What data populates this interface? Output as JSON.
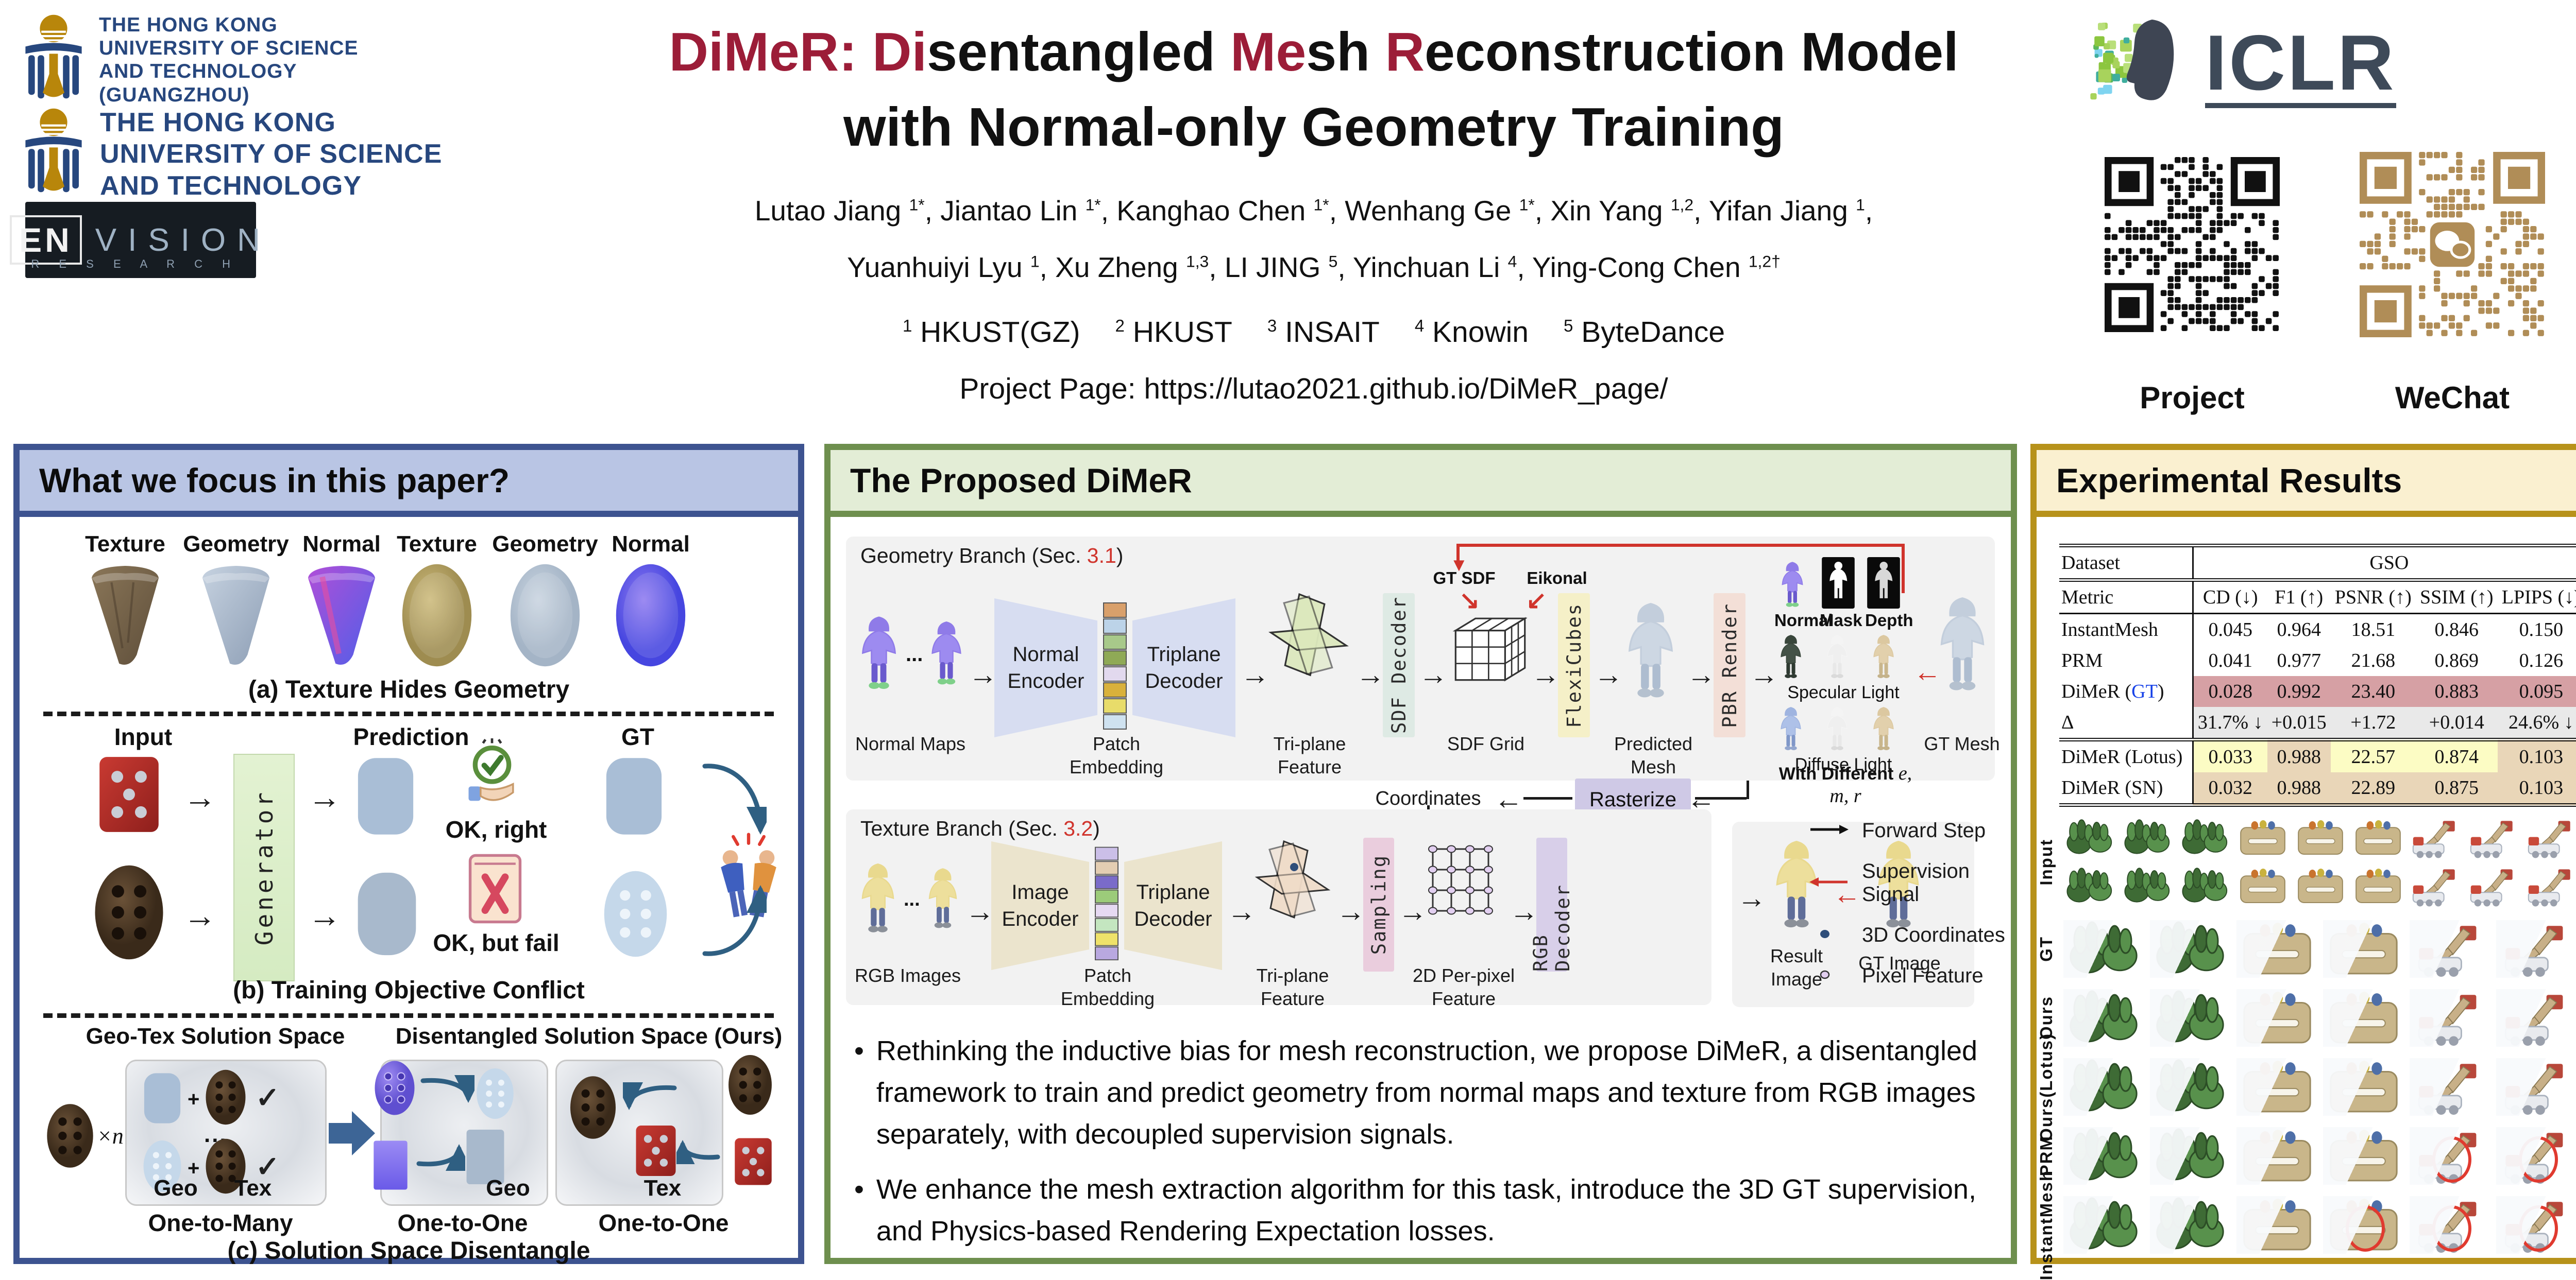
{
  "header": {
    "hkust_gz": {
      "lines": [
        "THE HONG KONG",
        "UNIVERSITY OF SCIENCE",
        "AND TECHNOLOGY",
        "(GUANGZHOU)"
      ]
    },
    "hkust": {
      "lines": [
        "THE HONG KONG",
        "UNIVERSITY OF SCIENCE",
        "AND TECHNOLOGY"
      ]
    },
    "envision": {
      "en": "EN",
      "vision": "VISION",
      "research": "R E S E A R C H"
    },
    "title": {
      "line1_parts": [
        {
          "text": "DiMeR",
          "accent": true
        },
        {
          "text": ": ",
          "accent": true
        },
        {
          "text": "Di",
          "accent": true
        },
        {
          "text": "sentangled ",
          "accent": false
        },
        {
          "text": "Me",
          "accent": true
        },
        {
          "text": "sh ",
          "accent": false
        },
        {
          "text": "R",
          "accent": true
        },
        {
          "text": "econstruction Model",
          "accent": false
        }
      ],
      "line2": "with Normal-only Geometry Training"
    },
    "authors_line1": [
      {
        "name": "Lutao Jiang",
        "sup": "1*"
      },
      {
        "name": "Jiantao Lin",
        "sup": "1*"
      },
      {
        "name": "Kanghao Chen",
        "sup": "1*"
      },
      {
        "name": "Wenhang Ge",
        "sup": "1*"
      },
      {
        "name": "Xin Yang",
        "sup": "1,2"
      },
      {
        "name": "Yifan Jiang",
        "sup": "1"
      }
    ],
    "authors_line1_suffix": ",",
    "authors_line2": [
      {
        "name": "Yuanhuiyi Lyu",
        "sup": "1"
      },
      {
        "name": "Xu Zheng",
        "sup": "1,3"
      },
      {
        "name": "LI JING",
        "sup": "5"
      },
      {
        "name": "Yinchuan Li",
        "sup": "4"
      },
      {
        "name": "Ying-Cong Chen",
        "sup": "1,2†"
      }
    ],
    "affiliations": [
      {
        "sup": "1",
        "name": "HKUST(GZ)"
      },
      {
        "sup": "2",
        "name": "HKUST"
      },
      {
        "sup": "3",
        "name": "INSAIT"
      },
      {
        "sup": "4",
        "name": "Knowin"
      },
      {
        "sup": "5",
        "name": "ByteDance"
      }
    ],
    "project_page": "Project Page: https://lutao2021.github.io/DiMeR_page/",
    "iclr_text": "ICLR",
    "qr_project_label": "Project",
    "qr_wechat_label": "WeChat"
  },
  "left_panel": {
    "title": "What we focus in this paper?",
    "section_a": {
      "labels": [
        "Texture",
        "Geometry",
        "Normal",
        "Texture",
        "Geometry",
        "Normal"
      ],
      "caption_tag": "(a)",
      "caption": " Texture Hides Geometry"
    },
    "section_b": {
      "headers": [
        "Input",
        "Prediction",
        "GT"
      ],
      "generator_label": "Generator",
      "ok_right": "OK, right",
      "ok_fail": "OK, but fail",
      "caption_tag": "(b)",
      "caption": " Training Objective Conflict"
    },
    "section_c": {
      "left_space_title": "Geo-Tex Solution Space",
      "right_space_title_pre": "Disentangled Solution Space (",
      "right_space_title_accent": "Ours",
      "right_space_title_post": ")",
      "multiplier": "×n",
      "ellipsis": "...",
      "geo_label": "Geo",
      "tex_label": "Tex",
      "captions": [
        "One-to-Many",
        "One-to-One",
        "One-to-One"
      ],
      "caption_tag": "(c)",
      "caption": " Solution Space Disentangle"
    }
  },
  "center_panel": {
    "title": "The Proposed DiMeR",
    "geometry_branch": {
      "heading_pre": "Geometry Branch (Sec. ",
      "heading_num": "3.1",
      "heading_post": ")",
      "nodes": {
        "normal_maps": "Normal Maps",
        "normal_encoder": "Normal Encoder",
        "patch_embedding": "Patch Embedding",
        "triplane_decoder": "Triplane Decoder",
        "triplane_feature": "Tri-plane Feature",
        "sdf_decoder": "SDF Decoder",
        "sdf_grid": "SDF Grid",
        "gt_sdf": "GT SDF",
        "eikonal": "Eikonal",
        "flexicubes": "FlexiCubes",
        "predicted_mesh": "Predicted Mesh",
        "pbr_render": "PBR Render",
        "normal": "Normal",
        "mask": "Mask",
        "depth": "Depth",
        "specular": "Specular Light",
        "diffuse": "Diffuse Light",
        "with_different": "With Different",
        "emr": "e, m, r",
        "gt_mesh": "GT Mesh"
      }
    },
    "texture_branch": {
      "heading_pre": "Texture Branch (Sec. ",
      "heading_num": "3.2",
      "heading_post": ")",
      "nodes": {
        "rgb_images": "RGB Images",
        "image_encoder": "Image Encoder",
        "patch_embedding": "Patch Embedding",
        "triplane_decoder": "Triplane Decoder",
        "triplane_feature": "Tri-plane Feature",
        "sampling": "Sampling",
        "per_pixel": "2D Per-pixel Feature",
        "rgb_decoder": "RGB Decoder",
        "result_image": "Result Image",
        "gt_image": "GT Image",
        "coordinates": "Coordinates",
        "rasterize": "Rasterize"
      }
    },
    "legend": [
      {
        "icon": "forward-arrow",
        "label": "Forward Step"
      },
      {
        "icon": "supervision-arrow",
        "label": "Supervision Signal"
      },
      {
        "icon": "coordinate-dot",
        "label": "3D Coordinates"
      },
      {
        "icon": "pixel-dot",
        "label": "Pixel Feature"
      }
    ],
    "bullets": [
      "Rethinking the inductive bias for mesh reconstruction, we propose DiMeR, a disentangled framework to train and predict geometry from normal maps and texture from RGB images separately, with decoupled supervision signals.",
      "We enhance the mesh extraction algorithm for this task, introduce the 3D GT supervision, and Physics-based Rendering Expectation losses."
    ]
  },
  "right_panel": {
    "title": "Experimental Results",
    "table": {
      "dataset_label": "Dataset",
      "dataset_value": "GSO",
      "metric_label": "Metric",
      "columns": [
        "CD (↓)",
        "F1 (↑)",
        "PSNR (↑)",
        "SSIM (↑)",
        "LPIPS (↓)"
      ],
      "rows": [
        {
          "name": "InstantMesh",
          "values": [
            "0.045",
            "0.964",
            "18.51",
            "0.846",
            "0.150"
          ],
          "cell_bg": [
            "",
            "",
            "",
            "",
            ""
          ]
        },
        {
          "name": "PRM",
          "values": [
            "0.041",
            "0.977",
            "21.68",
            "0.869",
            "0.126"
          ],
          "cell_bg": [
            "",
            "",
            "",
            "",
            ""
          ]
        },
        {
          "name_pre": "DiMeR (",
          "name_accent": "GT",
          "name_post": ")",
          "values": [
            "0.028",
            "0.992",
            "23.40",
            "0.883",
            "0.095"
          ],
          "cell_bg": [
            "pink",
            "pink",
            "pink",
            "pink",
            "pink"
          ]
        },
        {
          "name": "Δ",
          "values": [
            "31.7% ↓",
            "+0.015",
            "+1.72",
            "+0.014",
            "24.6% ↓"
          ],
          "cell_bg": [
            "gray",
            "gray",
            "gray",
            "gray",
            "gray"
          ],
          "group_break_after": true
        },
        {
          "name": "DiMeR (Lotus)",
          "values": [
            "0.033",
            "0.988",
            "22.57",
            "0.874",
            "0.103"
          ],
          "cell_bg": [
            "yellow",
            "tan",
            "yellow",
            "yellow",
            "tan"
          ]
        },
        {
          "name": "DiMeR (SN)",
          "values": [
            "0.032",
            "0.988",
            "22.89",
            "0.875",
            "0.103"
          ],
          "cell_bg": [
            "tan",
            "tan",
            "tan",
            "tan",
            "tan"
          ]
        }
      ]
    },
    "grid_rows": [
      {
        "label": "Input",
        "type": "input"
      },
      {
        "label": "GT",
        "circles": []
      },
      {
        "label": "Ours",
        "circles": []
      },
      {
        "label": "Ours(Lotus)",
        "circles": []
      },
      {
        "label": "PRM",
        "circles": [
          4,
          5
        ]
      },
      {
        "label": "InstantMesh",
        "circles": [
          3,
          4,
          5
        ]
      }
    ]
  },
  "colors": {
    "maroon": "#9C1D38",
    "navy_logo": "#27477E",
    "left_border": "#3D5390",
    "left_header_bg": "#B9C5E4",
    "center_border": "#6E8F4E",
    "center_header_bg": "#E3EDD6",
    "right_border": "#B7921B",
    "right_header_bg": "#FAF0D0",
    "sec_red": "#D0342C",
    "hl_pink": "#D6A0A4",
    "hl_gray": "#E9E9E9",
    "hl_yellow": "#FCFCC4",
    "hl_tan": "#E9D6B8",
    "gt_blue": "#1742E8"
  }
}
